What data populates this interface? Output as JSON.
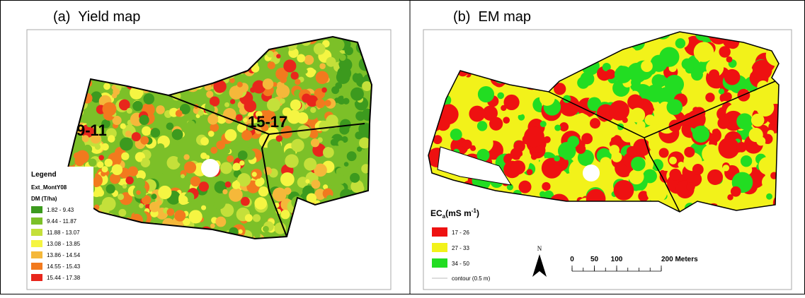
{
  "panels": [
    {
      "title": "(a)  Yield map",
      "zones": [
        "9-11",
        "15-17"
      ],
      "legend": {
        "heading": "Legend",
        "layer": "Ext_MontY08",
        "field": "DM (T/ha)",
        "items": [
          {
            "label": "1.82 - 9.43",
            "color": "#3c9a1e"
          },
          {
            "label": "9.44 - 11.87",
            "color": "#7cc028"
          },
          {
            "label": "11.88 - 13.07",
            "color": "#c4e03a"
          },
          {
            "label": "13.08 - 13.85",
            "color": "#f5f542"
          },
          {
            "label": "13.86 - 14.54",
            "color": "#f5b83a"
          },
          {
            "label": "14.55 - 15.43",
            "color": "#f27a1e"
          },
          {
            "label": "15.44 - 17.38",
            "color": "#e8261c"
          }
        ]
      }
    },
    {
      "title": "(b)  EM map",
      "legend": {
        "base": "EC",
        "sub": "a",
        "unit": "(mS m",
        "sup": "-1",
        "close": ")",
        "items": [
          {
            "label": "17 - 26",
            "color": "#ee1111"
          },
          {
            "label": "27 - 33",
            "color": "#f2f21a"
          },
          {
            "label": "34 - 50",
            "color": "#22dd22"
          }
        ],
        "contour": "contour (0.5 m)"
      },
      "north": "N",
      "scale": [
        0,
        50,
        100,
        {
          "value": 200,
          "label": "200 Meters"
        }
      ]
    }
  ]
}
